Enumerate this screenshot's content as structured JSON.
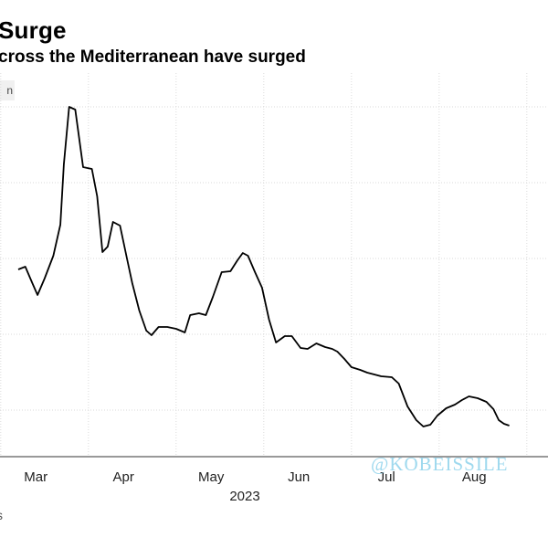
{
  "header": {
    "title": "Surge",
    "subtitle": "cross the Mediterranean have surged",
    "unit_fragment": "n"
  },
  "watermark": "@KOBEISSILE",
  "footer_mark": "s",
  "chart_data": {
    "type": "line",
    "title": "Surge",
    "subtitle": "cross the Mediterranean have surged",
    "x_tick_labels": [
      "Mar",
      "Apr",
      "May",
      "Jun",
      "Jul",
      "Aug"
    ],
    "year_label": "2023",
    "grid": true,
    "y_gridline_count": 5,
    "line_color": "#000000",
    "series": [
      {
        "values": [
          [
            0,
            295
          ],
          [
            0.08,
            292
          ],
          [
            0.16,
            310
          ],
          [
            0.22,
            323
          ],
          [
            0.3,
            305
          ],
          [
            0.4,
            280
          ],
          [
            0.48,
            246
          ],
          [
            0.52,
            180
          ],
          [
            0.58,
            117
          ],
          [
            0.65,
            120
          ],
          [
            0.74,
            183
          ],
          [
            0.84,
            185
          ],
          [
            0.9,
            215
          ],
          [
            0.96,
            276
          ],
          [
            1.02,
            270
          ],
          [
            1.08,
            243
          ],
          [
            1.16,
            247
          ],
          [
            1.24,
            283
          ],
          [
            1.3,
            310
          ],
          [
            1.38,
            340
          ],
          [
            1.46,
            362
          ],
          [
            1.52,
            367
          ],
          [
            1.6,
            358
          ],
          [
            1.7,
            358
          ],
          [
            1.8,
            360
          ],
          [
            1.9,
            364
          ],
          [
            1.96,
            345
          ],
          [
            2.06,
            343
          ],
          [
            2.14,
            345
          ],
          [
            2.22,
            325
          ],
          [
            2.32,
            298
          ],
          [
            2.42,
            297
          ],
          [
            2.5,
            285
          ],
          [
            2.56,
            277
          ],
          [
            2.62,
            280
          ],
          [
            2.7,
            298
          ],
          [
            2.78,
            315
          ],
          [
            2.86,
            350
          ],
          [
            2.94,
            375
          ],
          [
            3.04,
            368
          ],
          [
            3.12,
            368
          ],
          [
            3.22,
            381
          ],
          [
            3.3,
            382
          ],
          [
            3.4,
            376
          ],
          [
            3.5,
            380
          ],
          [
            3.58,
            382
          ],
          [
            3.64,
            385
          ],
          [
            3.72,
            393
          ],
          [
            3.8,
            402
          ],
          [
            3.9,
            405
          ],
          [
            3.98,
            408
          ],
          [
            4.06,
            410
          ],
          [
            4.14,
            412
          ],
          [
            4.26,
            413
          ],
          [
            4.34,
            420
          ],
          [
            4.44,
            445
          ],
          [
            4.54,
            460
          ],
          [
            4.62,
            467
          ],
          [
            4.7,
            465
          ],
          [
            4.78,
            455
          ],
          [
            4.88,
            447
          ],
          [
            4.98,
            443
          ],
          [
            5.06,
            438
          ],
          [
            5.14,
            434
          ],
          [
            5.24,
            436
          ],
          [
            5.34,
            440
          ],
          [
            5.42,
            448
          ],
          [
            5.48,
            460
          ],
          [
            5.54,
            464
          ],
          [
            5.6,
            466
          ]
        ]
      }
    ]
  }
}
